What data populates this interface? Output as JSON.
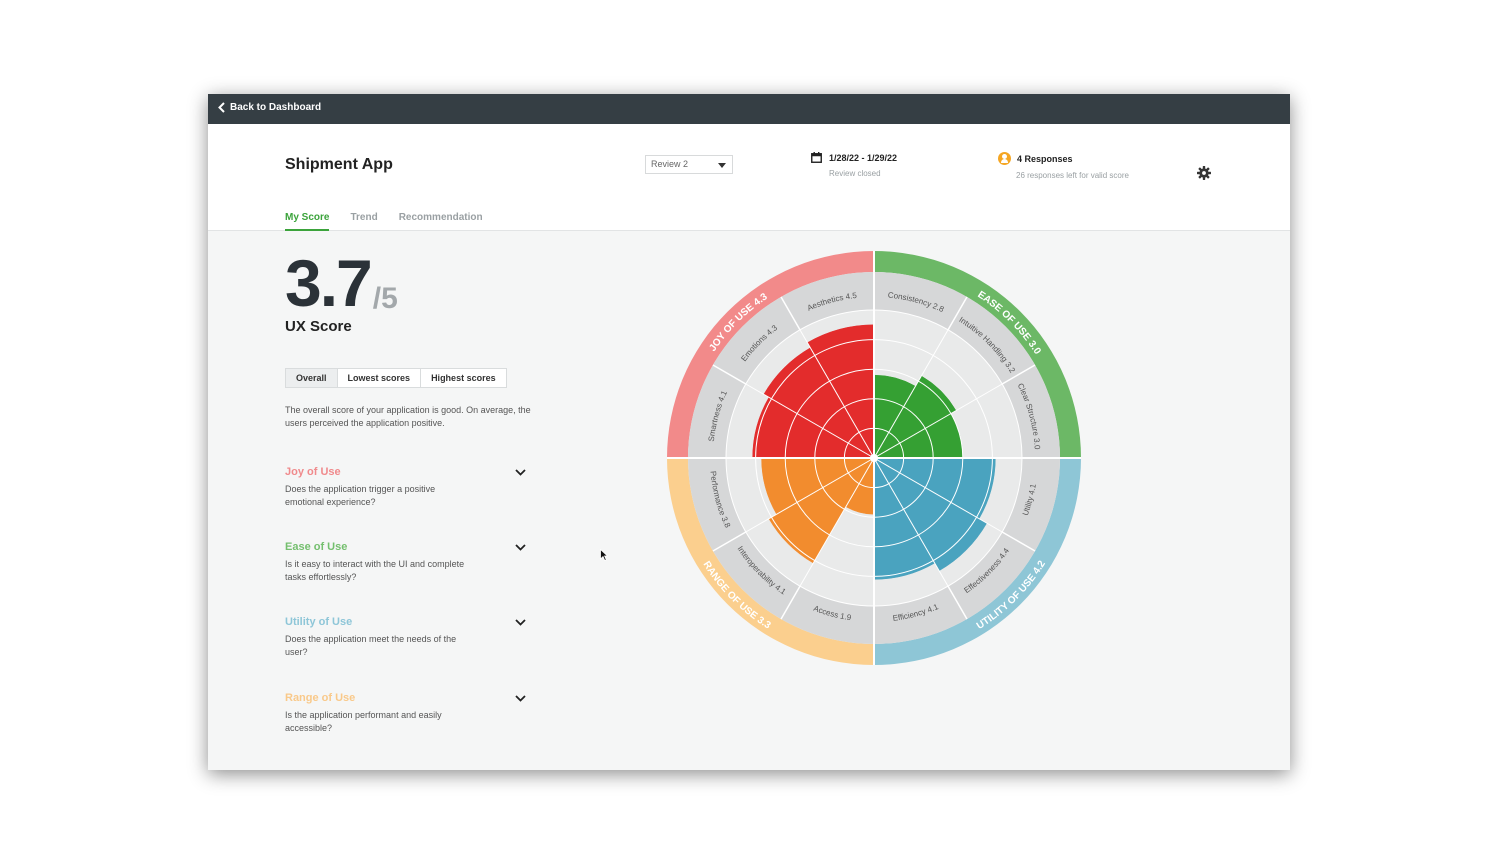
{
  "topbar": {
    "back_label": "Back to Dashboard"
  },
  "header": {
    "app_title": "Shipment App",
    "review_select": "Review 2",
    "date_range": "1/28/22 - 1/29/22",
    "review_status": "Review closed",
    "responses": "4 Responses",
    "responses_note": "26 responses left for valid score"
  },
  "tabs": [
    "My Score",
    "Trend",
    "Recommendation"
  ],
  "score": {
    "value": "3.7",
    "max": "/5",
    "label": "UX Score"
  },
  "segments": [
    "Overall",
    "Lowest scores",
    "Highest scores"
  ],
  "overall_text": "The overall score of your application is good. On average, the users perceived the application positive.",
  "categories": [
    {
      "title": "Joy of Use",
      "color": "#f08a8c",
      "desc": "Does the application trigger a positive emotional experience?"
    },
    {
      "title": "Ease of Use",
      "color": "#74bf6e",
      "desc": "Is it easy to interact with the UI and complete tasks effortlessly?"
    },
    {
      "title": "Utility of Use",
      "color": "#8ec6d8",
      "desc": "Does the application meet the needs of the user?"
    },
    {
      "title": "Range of Use",
      "color": "#f9c98a",
      "desc": "Is the application performant and easily accessible?"
    }
  ],
  "chart_data": {
    "type": "polar-area",
    "max": 5,
    "groups": [
      {
        "name": "EASE OF USE 3.0",
        "ring_color": "#6cb866",
        "fill_color": "#35a033",
        "items": [
          {
            "label": "Consistency 2.8",
            "value": 2.8
          },
          {
            "label": "Intuitive Handling 3.2",
            "value": 3.2
          },
          {
            "label": "Clear Structure 3.0",
            "value": 3.0
          }
        ]
      },
      {
        "name": "UTILITY OF USE 4.2",
        "ring_color": "#8ec6d6",
        "fill_color": "#4aa3bf",
        "items": [
          {
            "label": "Utility 4.1",
            "value": 4.1
          },
          {
            "label": "Effectiveness 4.4",
            "value": 4.4
          },
          {
            "label": "Efficiency 4.1",
            "value": 4.1
          }
        ]
      },
      {
        "name": "RANGE OF USE 3.3",
        "ring_color": "#fbcf8e",
        "fill_color": "#f28c2e",
        "items": [
          {
            "label": "Access 1.9",
            "value": 1.9
          },
          {
            "label": "Interoperability 4.1",
            "value": 4.1
          },
          {
            "label": "Performance 3.8",
            "value": 3.8
          }
        ]
      },
      {
        "name": "JOY OF USE 4.3",
        "ring_color": "#f28a8a",
        "fill_color": "#e32c2c",
        "items": [
          {
            "label": "Smartness 4.1",
            "value": 4.1
          },
          {
            "label": "Emotions 4.3",
            "value": 4.3
          },
          {
            "label": "Aesthetics 4.5",
            "value": 4.5
          }
        ]
      }
    ]
  }
}
